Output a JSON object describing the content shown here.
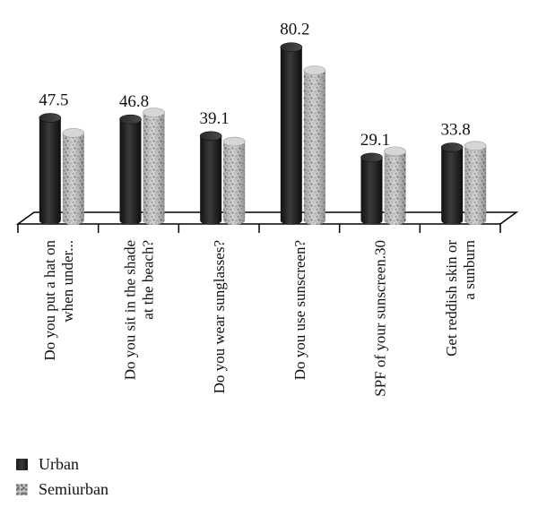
{
  "chart_data": {
    "type": "bar",
    "categories": [
      [
        "Do you put a hat on",
        "when under..."
      ],
      [
        "Do you sit in the shade",
        "at the beach?"
      ],
      [
        "Do you wear sunglasses?"
      ],
      [
        "Do you use sunscreen?"
      ],
      [
        "SPF of your sunscreen.30"
      ],
      [
        "Get reddish skin or",
        "a sunburn"
      ]
    ],
    "series": [
      {
        "name": "Urban",
        "values": [
          47.5,
          46.8,
          39.1,
          80.2,
          29.1,
          33.8
        ]
      },
      {
        "name": "Semiurban",
        "values": [
          40.5,
          50.0,
          36.5,
          69.5,
          32.0,
          34.5
        ]
      }
    ],
    "value_labels": [
      "47.5",
      "46.8",
      "39.1",
      "80.2",
      "29.1",
      "33.8"
    ],
    "ylim": [
      0,
      100
    ],
    "grid": false,
    "legend_position": "bottom-left",
    "colors": {
      "urban": "#1c1c1c",
      "semiurban": "#bdbdbd",
      "axis": "#000000"
    }
  },
  "legend": {
    "items": [
      {
        "label": "Urban"
      },
      {
        "label": "Semiurban"
      }
    ]
  }
}
